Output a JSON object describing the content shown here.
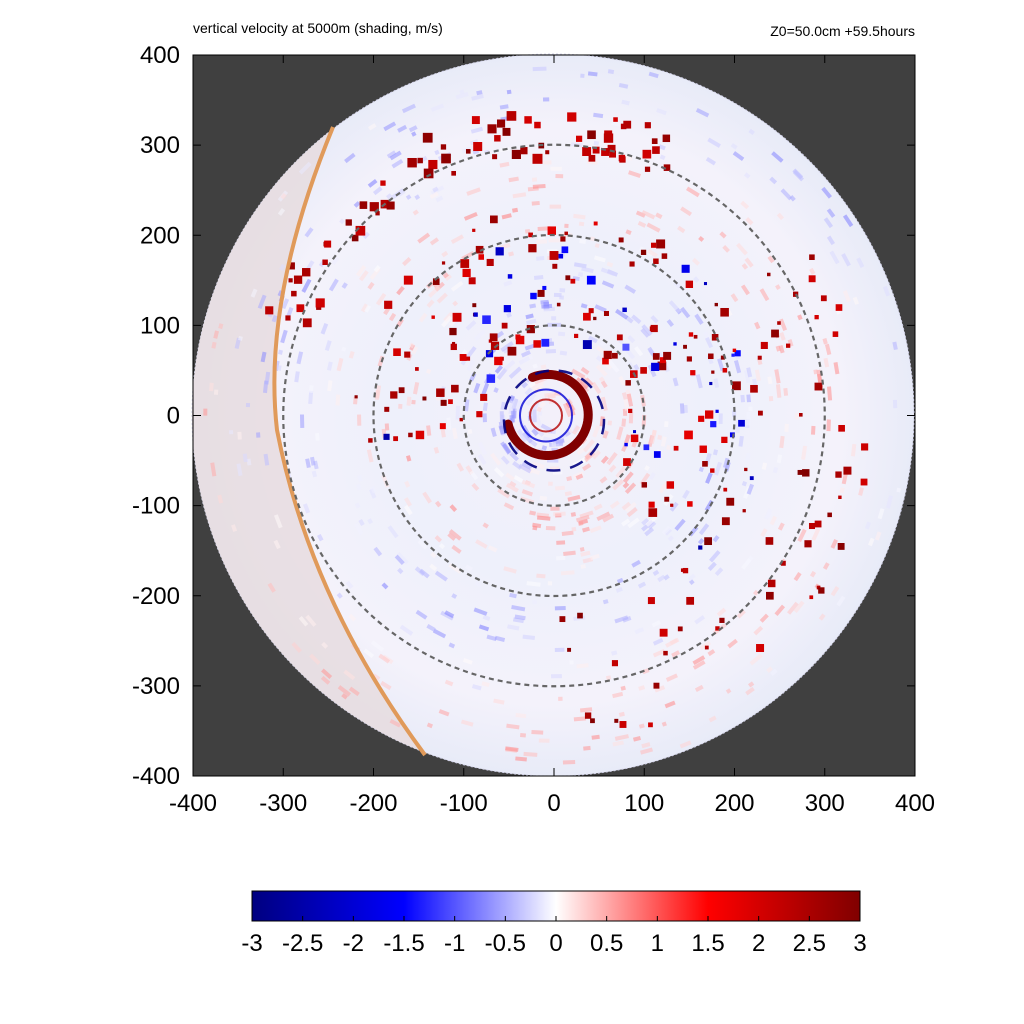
{
  "chart_data": {
    "type": "heatmap",
    "title": "vertical velocity at 5000m (shading, m/s)",
    "subtitle": "Z0=50.0cm  +59.5hours",
    "xlim": [
      -400,
      400
    ],
    "ylim": [
      -400,
      400
    ],
    "xticks": [
      -400,
      -300,
      -200,
      -100,
      0,
      100,
      200,
      300,
      400
    ],
    "yticks": [
      -400,
      -300,
      -200,
      -100,
      0,
      100,
      200,
      300,
      400
    ],
    "xtick_labels": [
      "-400",
      "-300",
      "-200",
      "-100",
      "0",
      "100",
      "200",
      "300",
      "400"
    ],
    "ytick_labels": [
      "-400",
      "-300",
      "-200",
      "-100",
      "0",
      "100",
      "200",
      "300",
      "400"
    ],
    "domain_radius": 400,
    "range_rings": [
      100,
      200,
      300
    ],
    "colorbar": {
      "min": -3,
      "max": 3,
      "ticks": [
        -3,
        -2.5,
        -2,
        -1.5,
        -1,
        -0.5,
        0,
        0.5,
        1,
        1.5,
        2,
        2.5,
        3
      ],
      "tick_labels": [
        "-3",
        "-2.5",
        "-2",
        "-1.5",
        "-1",
        "-0.5",
        "0",
        "0.5",
        "1",
        "1.5",
        "2",
        "2.5",
        "3"
      ],
      "colors": [
        "#000080",
        "#0000ff",
        "#ffffff",
        "#ff0000",
        "#800000"
      ]
    },
    "features": {
      "eyewall_updraft_max": 3,
      "eyewall_downdraft_min": -3,
      "outer_boundary_line_color": "#e09a5a",
      "background_color": "#404040"
    }
  }
}
